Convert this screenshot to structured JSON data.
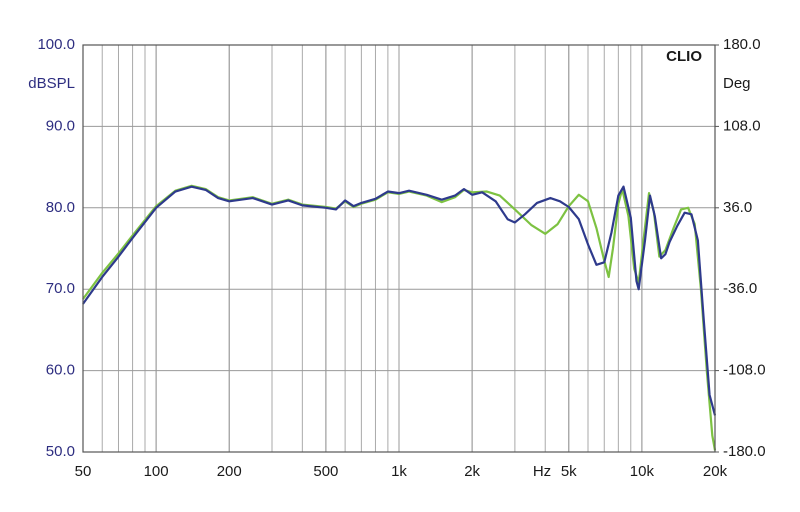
{
  "chart_data": {
    "type": "line",
    "annotation": "CLIO",
    "y_label": "dBSPL",
    "y2_label": "Deg",
    "x_label": "Hz",
    "log_x": true,
    "grid": true,
    "xlim": [
      50,
      20000
    ],
    "xticks": [
      50,
      100,
      200,
      500,
      {
        "value": 1000,
        "label": "1k"
      },
      {
        "value": 2000,
        "label": "2k"
      },
      {
        "value": 5000,
        "label": "5k"
      },
      {
        "value": 10000,
        "label": "10k"
      },
      {
        "value": 20000,
        "label": "20k"
      }
    ],
    "ylim": [
      50,
      100
    ],
    "yticks": [
      {
        "value": 50,
        "label": "50.0"
      },
      {
        "value": 60,
        "label": "60.0"
      },
      {
        "value": 70,
        "label": "70.0"
      },
      {
        "value": 80,
        "label": "80.0"
      },
      {
        "value": 90,
        "label": "90.0"
      },
      {
        "value": 100,
        "label": "100.0"
      }
    ],
    "y2lim": [
      -180,
      180
    ],
    "y2ticks": [
      {
        "value": -180,
        "label": "-180.0"
      },
      {
        "value": -108,
        "label": "-108.0"
      },
      {
        "value": -36,
        "label": "-36.0"
      },
      {
        "value": 36,
        "label": "36.0"
      },
      {
        "value": 108,
        "label": "108.0"
      },
      {
        "value": 180,
        "label": "180.0"
      }
    ],
    "series": [
      {
        "color": "#7dc242",
        "x": [
          50,
          60,
          70,
          80,
          100,
          120,
          140,
          160,
          180,
          200,
          250,
          300,
          350,
          400,
          500,
          550,
          600,
          650,
          700,
          800,
          900,
          1000,
          1100,
          1300,
          1500,
          1700,
          1850,
          2000,
          2300,
          2600,
          3000,
          3500,
          4000,
          4500,
          5000,
          5500,
          6000,
          6500,
          7000,
          7300,
          7600,
          8000,
          8300,
          8800,
          9300,
          9700,
          10200,
          10700,
          11200,
          11800,
          12500,
          13500,
          14500,
          15500,
          16500,
          17500,
          18500,
          19500,
          20000
        ],
        "values": [
          68.8,
          72,
          74.4,
          76.6,
          80.2,
          82.1,
          82.7,
          82.3,
          81.3,
          80.9,
          81.3,
          80.5,
          81,
          80.4,
          80.1,
          79.9,
          80.8,
          80.1,
          80.5,
          81,
          81.9,
          81.7,
          82,
          81.5,
          80.7,
          81.3,
          82.2,
          81.9,
          82,
          81.5,
          79.8,
          77.9,
          76.8,
          78,
          80.2,
          81.6,
          80.8,
          77.5,
          73.5,
          71.5,
          75,
          80.5,
          82.3,
          79,
          72.5,
          70.8,
          76.5,
          81.8,
          79.5,
          74,
          74.8,
          77.5,
          79.8,
          80,
          78,
          70,
          60,
          52,
          50.2
        ]
      },
      {
        "color": "#2e3a8c",
        "x": [
          50,
          60,
          70,
          80,
          100,
          120,
          140,
          160,
          180,
          200,
          250,
          300,
          350,
          400,
          500,
          550,
          600,
          650,
          700,
          800,
          900,
          1000,
          1100,
          1300,
          1500,
          1700,
          1850,
          2000,
          2200,
          2500,
          2800,
          3000,
          3300,
          3700,
          4200,
          4600,
          5000,
          5500,
          6000,
          6500,
          7000,
          7500,
          8000,
          8400,
          9000,
          9500,
          9700,
          10300,
          10800,
          11300,
          12000,
          12500,
          13000,
          14000,
          15000,
          16000,
          17000,
          18000,
          19000,
          20000
        ],
        "values": [
          68.2,
          71.5,
          74,
          76.3,
          80,
          82,
          82.6,
          82.2,
          81.2,
          80.8,
          81.2,
          80.4,
          80.9,
          80.3,
          80,
          79.8,
          80.9,
          80.2,
          80.6,
          81.1,
          82,
          81.8,
          82.1,
          81.6,
          81,
          81.5,
          82.3,
          81.6,
          81.9,
          80.8,
          78.6,
          78.2,
          79.2,
          80.6,
          81.2,
          80.8,
          80.1,
          78.6,
          75.5,
          73,
          73.3,
          77,
          81.5,
          82.6,
          78.8,
          71,
          70,
          76,
          81.5,
          79,
          73.8,
          74.3,
          75.8,
          77.8,
          79.4,
          79.2,
          76,
          66,
          57,
          54.5
        ]
      }
    ]
  }
}
